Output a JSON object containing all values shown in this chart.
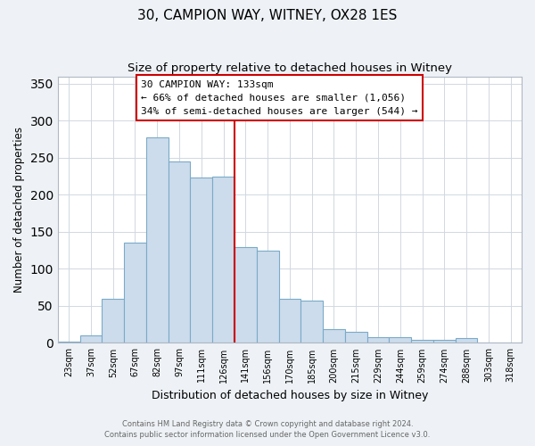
{
  "title": "30, CAMPION WAY, WITNEY, OX28 1ES",
  "subtitle": "Size of property relative to detached houses in Witney",
  "xlabel": "Distribution of detached houses by size in Witney",
  "ylabel": "Number of detached properties",
  "categories": [
    "23sqm",
    "37sqm",
    "52sqm",
    "67sqm",
    "82sqm",
    "97sqm",
    "111sqm",
    "126sqm",
    "141sqm",
    "156sqm",
    "170sqm",
    "185sqm",
    "200sqm",
    "215sqm",
    "229sqm",
    "244sqm",
    "259sqm",
    "274sqm",
    "288sqm",
    "303sqm",
    "318sqm"
  ],
  "values": [
    2,
    10,
    59,
    135,
    278,
    245,
    223,
    225,
    130,
    125,
    60,
    57,
    18,
    15,
    8,
    8,
    4,
    4,
    6,
    1,
    1
  ],
  "bar_color": "#ccdcec",
  "bar_edge_color": "#7aaac8",
  "vline_x_index": 7.5,
  "vline_color": "#cc0000",
  "annotation_title": "30 CAMPION WAY: 133sqm",
  "annotation_line1": "← 66% of detached houses are smaller (1,056)",
  "annotation_line2": "34% of semi-detached houses are larger (544) →",
  "annotation_box_edge_color": "#cc0000",
  "ylim": [
    0,
    360
  ],
  "yticks": [
    0,
    50,
    100,
    150,
    200,
    250,
    300,
    350
  ],
  "footer1": "Contains HM Land Registry data © Crown copyright and database right 2024.",
  "footer2": "Contains public sector information licensed under the Open Government Licence v3.0.",
  "background_color": "#eef2f6",
  "plot_background_color": "#ffffff",
  "grid_color": "#d0d8e0",
  "title_fontsize": 11,
  "subtitle_fontsize": 9.5
}
